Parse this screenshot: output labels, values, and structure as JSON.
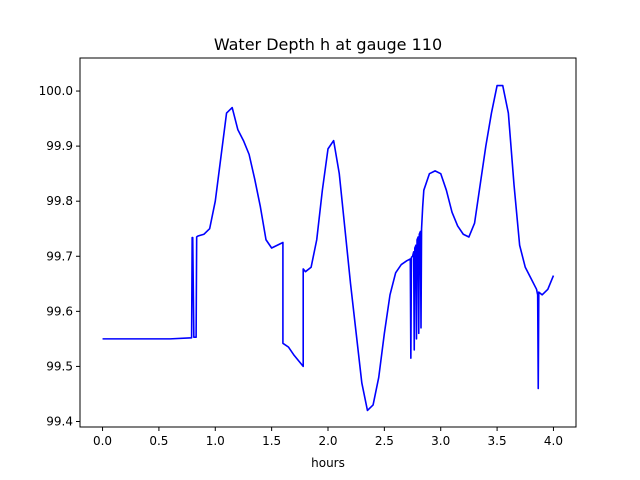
{
  "chart_data": {
    "type": "line",
    "title": "Water Depth h at gauge 110",
    "xlabel": "hours",
    "ylabel": "",
    "xlim": [
      -0.2,
      4.2
    ],
    "ylim": [
      99.39,
      100.06
    ],
    "xticks": [
      0.0,
      0.5,
      1.0,
      1.5,
      2.0,
      2.5,
      3.0,
      3.5,
      4.0
    ],
    "xtick_labels": [
      "0.0",
      "0.5",
      "1.0",
      "1.5",
      "2.0",
      "2.5",
      "3.0",
      "3.5",
      "4.0"
    ],
    "yticks": [
      99.4,
      99.5,
      99.6,
      99.7,
      99.8,
      99.9,
      100.0
    ],
    "ytick_labels": [
      "99.4",
      "99.5",
      "99.6",
      "99.7",
      "99.8",
      "99.9",
      "100.0"
    ],
    "grid": false,
    "series": [
      {
        "name": "",
        "color": "#0000ff",
        "x": [
          0.0,
          0.2,
          0.4,
          0.6,
          0.79,
          0.795,
          0.8,
          0.81,
          0.815,
          0.83,
          0.835,
          0.84,
          0.85,
          0.9,
          0.95,
          1.0,
          1.05,
          1.1,
          1.15,
          1.2,
          1.25,
          1.3,
          1.35,
          1.4,
          1.45,
          1.5,
          1.55,
          1.6,
          1.6,
          1.65,
          1.7,
          1.78,
          1.78,
          1.8,
          1.85,
          1.9,
          1.95,
          2.0,
          2.05,
          2.1,
          2.15,
          2.2,
          2.25,
          2.3,
          2.35,
          2.4,
          2.45,
          2.5,
          2.55,
          2.6,
          2.65,
          2.7,
          2.73,
          2.735,
          2.74,
          2.75,
          2.76,
          2.765,
          2.77,
          2.78,
          2.785,
          2.79,
          2.8,
          2.805,
          2.81,
          2.82,
          2.825,
          2.83,
          2.84,
          2.85,
          2.9,
          2.95,
          3.0,
          3.05,
          3.1,
          3.15,
          3.2,
          3.25,
          3.3,
          3.35,
          3.4,
          3.45,
          3.5,
          3.55,
          3.6,
          3.65,
          3.7,
          3.75,
          3.8,
          3.85,
          3.86,
          3.865,
          3.87,
          3.9,
          3.95,
          4.0
        ],
        "y": [
          99.55,
          99.55,
          99.55,
          99.55,
          99.552,
          99.734,
          99.734,
          99.553,
          99.553,
          99.553,
          99.735,
          99.736,
          99.737,
          99.74,
          99.75,
          99.8,
          99.88,
          99.96,
          99.97,
          99.93,
          99.91,
          99.885,
          99.84,
          99.79,
          99.73,
          99.715,
          99.72,
          99.725,
          99.542,
          99.535,
          99.52,
          99.5,
          99.677,
          99.672,
          99.68,
          99.73,
          99.82,
          99.895,
          99.91,
          99.85,
          99.75,
          99.65,
          99.56,
          99.47,
          99.42,
          99.43,
          99.48,
          99.56,
          99.63,
          99.67,
          99.685,
          99.692,
          99.695,
          99.515,
          99.698,
          99.7,
          99.708,
          99.53,
          99.715,
          99.72,
          99.55,
          99.73,
          99.735,
          99.56,
          99.74,
          99.745,
          99.57,
          99.75,
          99.79,
          99.82,
          99.85,
          99.855,
          99.85,
          99.82,
          99.78,
          99.755,
          99.74,
          99.735,
          99.76,
          99.83,
          99.9,
          99.96,
          100.01,
          100.01,
          99.96,
          99.83,
          99.72,
          99.68,
          99.66,
          99.64,
          99.63,
          99.46,
          99.635,
          99.63,
          99.64,
          99.665
        ]
      }
    ]
  }
}
